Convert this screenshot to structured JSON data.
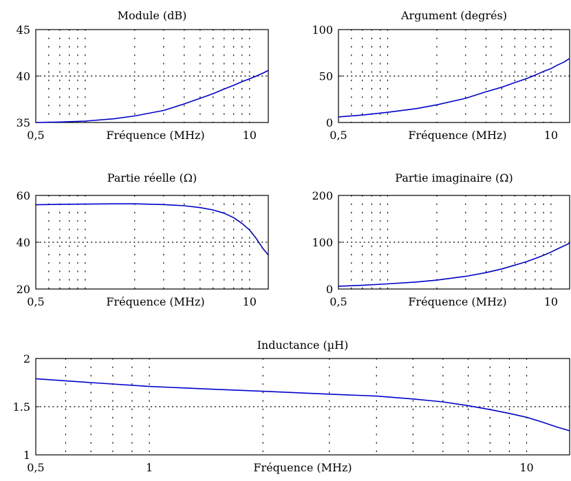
{
  "figure": {
    "xlabel": "Fréquence (MHz)"
  },
  "chart_data": [
    {
      "id": "module",
      "type": "line",
      "title": "Module (dB)",
      "xlabel": "Fréquence (MHz)",
      "xscale": "log",
      "xlim": [
        0.5,
        13
      ],
      "ylim": [
        35,
        45
      ],
      "xtick_labels": [
        "0,5",
        "10"
      ],
      "ytick_labels": [
        "35",
        "40",
        "45"
      ],
      "yticks": [
        35,
        40,
        45
      ],
      "grid": "dotted",
      "line_color": "#0000cc",
      "series": [
        {
          "x": [
            0.5,
            0.7,
            1,
            1.5,
            2,
            3,
            4,
            5,
            6,
            7,
            8,
            9,
            10,
            11,
            12,
            13
          ],
          "y": [
            35.0,
            35.05,
            35.15,
            35.4,
            35.7,
            36.3,
            37.0,
            37.6,
            38.1,
            38.6,
            39.0,
            39.4,
            39.7,
            40.0,
            40.3,
            40.6
          ]
        }
      ]
    },
    {
      "id": "argument",
      "type": "line",
      "title": "Argument (degrés)",
      "xlabel": "Fréquence (MHz)",
      "xscale": "log",
      "xlim": [
        0.5,
        13
      ],
      "ylim": [
        0,
        100
      ],
      "xtick_labels": [
        "0,5",
        "10"
      ],
      "ytick_labels": [
        "0",
        "50",
        "100"
      ],
      "yticks": [
        0,
        50,
        100
      ],
      "grid": "dotted",
      "line_color": "#0000cc",
      "series": [
        {
          "x": [
            0.5,
            0.7,
            1,
            1.5,
            2,
            3,
            4,
            5,
            6,
            7,
            8,
            9,
            10,
            11,
            12,
            13
          ],
          "y": [
            6,
            8,
            11,
            15,
            19,
            26,
            33,
            38,
            43,
            47,
            51,
            55,
            58,
            62,
            65,
            69
          ]
        }
      ]
    },
    {
      "id": "reel",
      "type": "line",
      "title": "Partie réelle (Ω)",
      "xlabel": "Fréquence (MHz)",
      "xscale": "log",
      "xlim": [
        0.5,
        13
      ],
      "ylim": [
        20,
        60
      ],
      "xtick_labels": [
        "0,5",
        "10"
      ],
      "ytick_labels": [
        "20",
        "40",
        "60"
      ],
      "yticks": [
        20,
        40,
        60
      ],
      "grid": "dotted",
      "line_color": "#0000cc",
      "series": [
        {
          "x": [
            0.5,
            0.7,
            1,
            1.5,
            2,
            3,
            4,
            5,
            6,
            7,
            8,
            9,
            10,
            11,
            12,
            13
          ],
          "y": [
            56,
            56.2,
            56.3,
            56.4,
            56.4,
            56.1,
            55.6,
            54.8,
            53.8,
            52.4,
            50.5,
            48.0,
            45.2,
            41.5,
            37.5,
            34.5
          ]
        }
      ]
    },
    {
      "id": "imaginaire",
      "type": "line",
      "title": "Partie imaginaire (Ω)",
      "xlabel": "Fréquence (MHz)",
      "xscale": "log",
      "xlim": [
        0.5,
        13
      ],
      "ylim": [
        0,
        200
      ],
      "xtick_labels": [
        "0,5",
        "10"
      ],
      "ytick_labels": [
        "0",
        "100",
        "200"
      ],
      "yticks": [
        0,
        100,
        200
      ],
      "grid": "dotted",
      "line_color": "#0000cc",
      "series": [
        {
          "x": [
            0.5,
            0.7,
            1,
            1.5,
            2,
            3,
            4,
            5,
            6,
            7,
            8,
            9,
            10,
            11,
            12,
            13
          ],
          "y": [
            6,
            8,
            11,
            15,
            19,
            27,
            35,
            43,
            51,
            58,
            65,
            72,
            79,
            86,
            92,
            98
          ]
        }
      ]
    },
    {
      "id": "inductance",
      "type": "line",
      "title": "Inductance (µH)",
      "xlabel": "Fréquence (MHz)",
      "xscale": "log",
      "xlim": [
        0.5,
        13
      ],
      "ylim": [
        1,
        2
      ],
      "xtick_labels": [
        "0,5",
        "1",
        "10"
      ],
      "ytick_labels": [
        "1",
        "1.5",
        "2"
      ],
      "yticks": [
        1,
        1.5,
        2
      ],
      "grid": "dotted",
      "line_color": "#0000cc",
      "series": [
        {
          "x": [
            0.5,
            0.7,
            1,
            1.5,
            2,
            3,
            4,
            5,
            6,
            7,
            8,
            9,
            10,
            11,
            12,
            13
          ],
          "y": [
            1.79,
            1.75,
            1.71,
            1.68,
            1.66,
            1.63,
            1.61,
            1.58,
            1.55,
            1.51,
            1.47,
            1.43,
            1.39,
            1.34,
            1.29,
            1.25
          ]
        }
      ]
    }
  ]
}
